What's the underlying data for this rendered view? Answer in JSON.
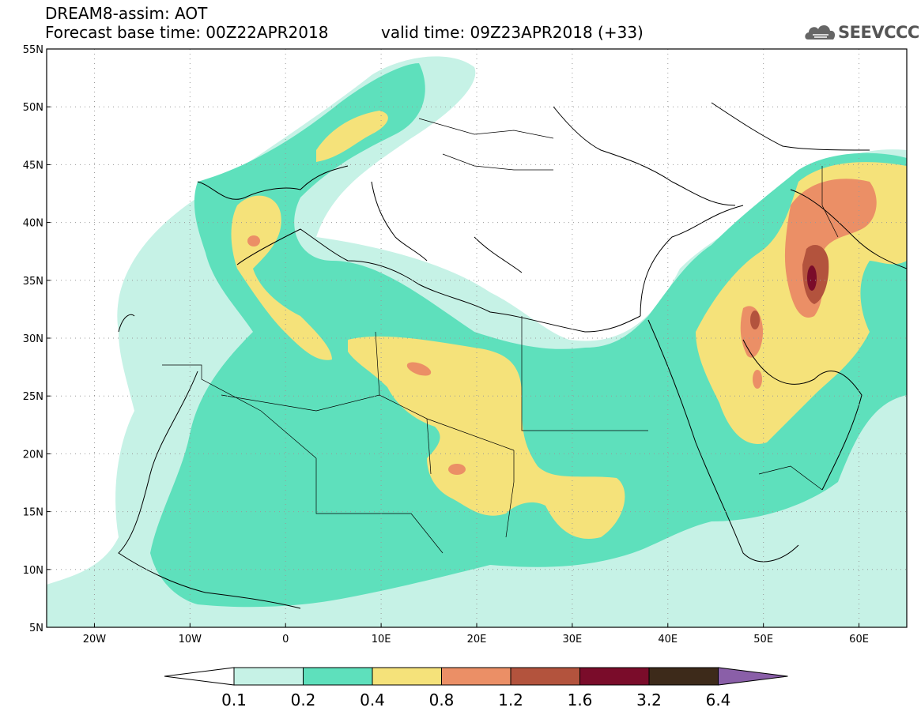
{
  "header": {
    "title": "DREAM8-assim: AOT",
    "forecast_base": "Forecast base time: 00Z22APR2018",
    "valid": "valid time: 09Z23APR2018 (+33)"
  },
  "logo": {
    "text": "SEEVCCC",
    "icon": "cloud-logo-icon"
  },
  "map": {
    "lon_range": [
      -25,
      65
    ],
    "lat_range": [
      5,
      55
    ],
    "lat_ticks": [
      "55N",
      "50N",
      "45N",
      "40N",
      "35N",
      "30N",
      "25N",
      "20N",
      "15N",
      "10N",
      "5N"
    ],
    "lon_ticks": [
      "20W",
      "10W",
      "0",
      "10E",
      "20E",
      "30E",
      "40E",
      "50E",
      "60E"
    ],
    "gridlines": true
  },
  "colorbar": {
    "labels": [
      "0.1",
      "0.2",
      "0.4",
      "0.8",
      "1.2",
      "1.6",
      "3.2",
      "6.4"
    ],
    "colors": [
      "#c6f2e6",
      "#5ee0bc",
      "#f5e27a",
      "#eb8f66",
      "#b3533d",
      "#7a0c2a",
      "#3d2a1a",
      "#8a5fa8"
    ]
  }
}
